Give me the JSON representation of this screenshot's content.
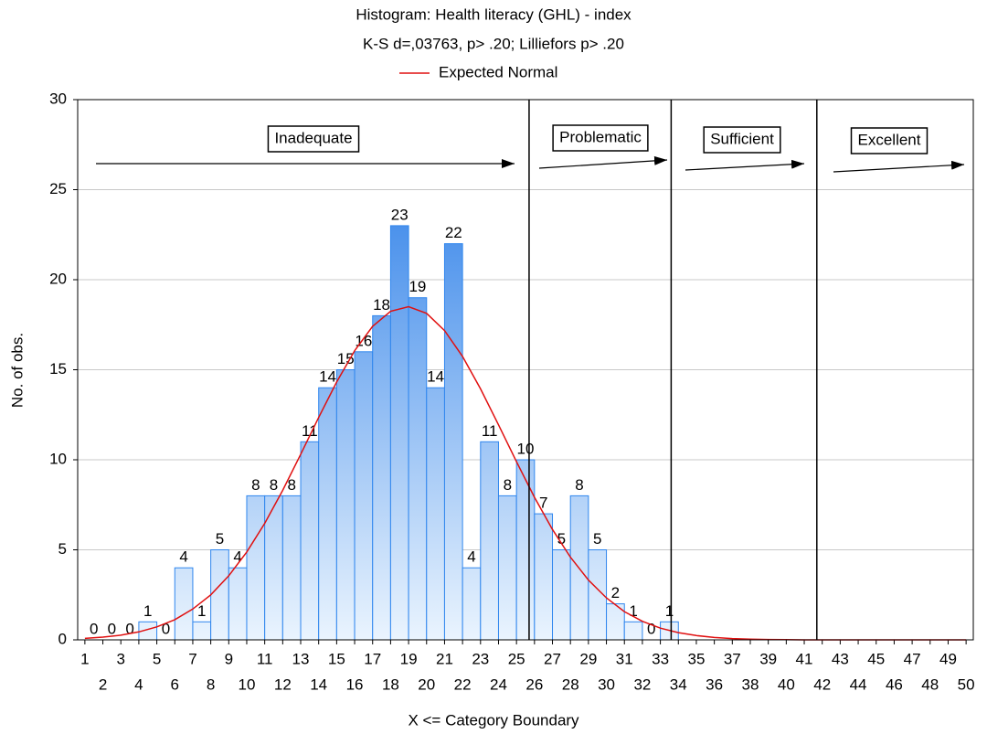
{
  "chart_data": {
    "type": "histogram",
    "title": "Histogram: Health literacy (GHL) - index",
    "subtitle": "K-S d=,03763, p> .20; Lilliefors p> .20",
    "x_label": "X <= Category Boundary",
    "y_label": "No. of obs.",
    "bins": [
      1,
      2,
      3,
      4,
      5,
      6,
      7,
      8,
      9,
      10,
      11,
      12,
      13,
      14,
      15,
      16,
      17,
      18,
      19,
      20,
      21,
      22,
      23,
      24,
      25,
      26,
      27,
      28,
      29,
      30,
      31,
      32,
      33,
      34
    ],
    "values": [
      0,
      0,
      0,
      1,
      0,
      4,
      1,
      5,
      4,
      8,
      8,
      8,
      11,
      14,
      15,
      16,
      18,
      23,
      19,
      14,
      22,
      4,
      11,
      8,
      10,
      7,
      5,
      8,
      5,
      2,
      1,
      0,
      1
    ],
    "color": "#2f86ee",
    "normal": {
      "name": "Expected Normal",
      "color": "#e01010",
      "x": [
        1,
        2,
        3,
        4,
        5,
        6,
        7,
        8,
        9,
        10,
        11,
        12,
        13,
        14,
        15,
        16,
        17,
        18,
        19,
        20,
        21,
        22,
        23,
        24,
        25,
        26,
        27,
        28,
        29,
        30,
        31,
        32,
        33,
        34,
        35,
        36,
        37,
        38,
        39,
        40,
        41,
        42,
        43,
        44,
        45,
        46,
        47,
        48,
        49,
        50
      ],
      "values": [
        0.08,
        0.15,
        0.26,
        0.44,
        0.72,
        1.12,
        1.71,
        2.5,
        3.56,
        4.88,
        6.47,
        8.3,
        10.3,
        12.35,
        14.32,
        16.06,
        17.41,
        18.25,
        18.5,
        18.13,
        17.18,
        15.74,
        13.94,
        11.94,
        9.89,
        7.92,
        6.13,
        4.59,
        3.32,
        2.33,
        1.57,
        1.03,
        0.65,
        0.4,
        0.24,
        0.13,
        0.07,
        0.04,
        0.02,
        0.01,
        0,
        0,
        0,
        0,
        0,
        0,
        0,
        0,
        0,
        0
      ]
    },
    "boundaries": [
      25.7,
      33.6,
      41.7
    ],
    "annotations": [
      "Inadequate",
      "Problematic",
      "Sufficient",
      "Excellent"
    ],
    "xlim": [
      0.6,
      50.4
    ],
    "xticks": [
      1,
      2,
      3,
      4,
      5,
      6,
      7,
      8,
      9,
      10,
      11,
      12,
      13,
      14,
      15,
      16,
      17,
      18,
      19,
      20,
      21,
      22,
      23,
      24,
      25,
      26,
      27,
      28,
      29,
      30,
      31,
      32,
      33,
      34,
      35,
      36,
      37,
      38,
      39,
      40,
      41,
      42,
      43,
      44,
      45,
      46,
      47,
      48,
      49,
      50
    ],
    "ylim": [
      0,
      30
    ],
    "yticks": [
      0,
      5,
      10,
      15,
      20,
      25,
      30
    ],
    "grid": true
  }
}
